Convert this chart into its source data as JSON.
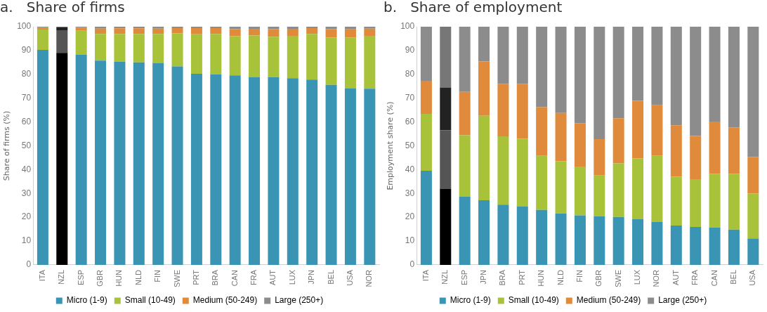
{
  "chart_data": [
    {
      "type": "bar",
      "title": "a.   Share of firms",
      "ylabel": "Share of firms (%)",
      "stacked": true,
      "grid": false,
      "legend": "bottom",
      "ylim": [
        0,
        100
      ],
      "yticks": [
        0,
        10,
        20,
        30,
        40,
        50,
        60,
        70,
        80,
        90,
        100
      ],
      "categories": [
        "ITA",
        "NZL",
        "ESP",
        "GBR",
        "HUN",
        "NLD",
        "FIN",
        "SWE",
        "PRT",
        "BRA",
        "CAN",
        "FRA",
        "AUT",
        "LUX",
        "JPN",
        "BEL",
        "USA",
        "NOR"
      ],
      "series": [
        {
          "name": "Micro (1-9)",
          "color": "#3a95b5",
          "colors": [
            "#3a95b5",
            "#000000",
            "#3a95b5",
            "#3a95b5",
            "#3a95b5",
            "#3a95b5",
            "#3a95b5",
            "#3a95b5",
            "#3a95b5",
            "#3a95b5",
            "#3a95b5",
            "#3a95b5",
            "#3a95b5",
            "#3a95b5",
            "#3a95b5",
            "#3a95b5",
            "#3a95b5",
            "#3a95b5"
          ],
          "values": [
            90.3,
            89,
            88.3,
            85.8,
            85.3,
            85.0,
            84.8,
            83.3,
            80.2,
            80.0,
            79.6,
            78.9,
            78.8,
            78.4,
            77.8,
            75.6,
            74.2,
            74.0
          ]
        },
        {
          "name": "Small (10-49)",
          "color": "#a8c23a",
          "colors": [
            "#a8c23a",
            "#555555",
            "#a8c23a",
            "#a8c23a",
            "#a8c23a",
            "#a8c23a",
            "#a8c23a",
            "#a8c23a",
            "#a8c23a",
            "#a8c23a",
            "#a8c23a",
            "#a8c23a",
            "#a8c23a",
            "#a8c23a",
            "#a8c23a",
            "#a8c23a",
            "#a8c23a",
            "#a8c23a"
          ],
          "values": [
            8.5,
            9.5,
            10.0,
            11.2,
            11.7,
            12.0,
            12.2,
            13.9,
            16.6,
            17.0,
            16.4,
            17.4,
            17.0,
            17.8,
            19.2,
            19.9,
            21.3,
            22.2
          ]
        },
        {
          "name": "Medium (50-249)",
          "color": "#e08a3c",
          "colors": [
            "#e08a3c",
            "#222222",
            "#e08a3c",
            "#e08a3c",
            "#e08a3c",
            "#e08a3c",
            "#e08a3c",
            "#e08a3c",
            "#e08a3c",
            "#e08a3c",
            "#e08a3c",
            "#e08a3c",
            "#e08a3c",
            "#e08a3c",
            "#e08a3c",
            "#e08a3c",
            "#e08a3c",
            "#e08a3c"
          ],
          "values": [
            0.8,
            1.2,
            1.3,
            2.2,
            2.3,
            2.3,
            2.2,
            2.2,
            2.6,
            2.4,
            3.0,
            2.8,
            3.2,
            2.9,
            2.4,
            3.5,
            3.4,
            3.0
          ]
        },
        {
          "name": "Large (250+)",
          "color": "#8c8c8c",
          "colors": [
            "#8c8c8c",
            "#777777",
            "#8c8c8c",
            "#8c8c8c",
            "#8c8c8c",
            "#8c8c8c",
            "#8c8c8c",
            "#8c8c8c",
            "#8c8c8c",
            "#8c8c8c",
            "#8c8c8c",
            "#8c8c8c",
            "#8c8c8c",
            "#8c8c8c",
            "#8c8c8c",
            "#8c8c8c",
            "#8c8c8c",
            "#8c8c8c"
          ],
          "values": [
            0.4,
            0.3,
            0.4,
            0.8,
            0.7,
            0.7,
            0.8,
            0.6,
            0.6,
            0.6,
            1.0,
            0.9,
            1.0,
            0.9,
            0.6,
            1.0,
            1.1,
            0.8
          ]
        }
      ]
    },
    {
      "type": "bar",
      "title": "b.   Share of employment",
      "ylabel": "Employment share (%)",
      "stacked": true,
      "grid": false,
      "legend": "bottom",
      "ylim": [
        0,
        100
      ],
      "yticks": [
        0,
        10,
        20,
        30,
        40,
        50,
        60,
        70,
        80,
        90,
        100
      ],
      "categories": [
        "ITA",
        "NZL",
        "ESP",
        "JPN",
        "BRA",
        "PRT",
        "HUN",
        "NLD",
        "FIN",
        "GBR",
        "SWE",
        "LUX",
        "NOR",
        "AUT",
        "FRA",
        "CAN",
        "BEL",
        "USA"
      ],
      "series": [
        {
          "name": "Micro (1-9)",
          "color": "#3a95b5",
          "colors": [
            "#3a95b5",
            "#000000",
            "#3a95b5",
            "#3a95b5",
            "#3a95b5",
            "#3a95b5",
            "#3a95b5",
            "#3a95b5",
            "#3a95b5",
            "#3a95b5",
            "#3a95b5",
            "#3a95b5",
            "#3a95b5",
            "#3a95b5",
            "#3a95b5",
            "#3a95b5",
            "#3a95b5",
            "#3a95b5"
          ],
          "values": [
            39.5,
            32.0,
            28.6,
            27.1,
            25.3,
            24.6,
            23.1,
            21.6,
            20.8,
            20.4,
            20.1,
            19.3,
            18.1,
            16.5,
            15.9,
            15.6,
            14.8,
            11.1
          ]
        },
        {
          "name": "Small (10-49)",
          "color": "#a8c23a",
          "colors": [
            "#a8c23a",
            "#555555",
            "#a8c23a",
            "#a8c23a",
            "#a8c23a",
            "#a8c23a",
            "#a8c23a",
            "#a8c23a",
            "#a8c23a",
            "#a8c23a",
            "#a8c23a",
            "#a8c23a",
            "#a8c23a",
            "#a8c23a",
            "#a8c23a",
            "#a8c23a",
            "#a8c23a",
            "#a8c23a"
          ],
          "values": [
            23.9,
            24.5,
            25.8,
            35.5,
            28.7,
            28.4,
            22.7,
            22.0,
            20.5,
            17.1,
            22.5,
            25.4,
            27.7,
            20.5,
            20.1,
            22.6,
            23.4,
            18.8
          ]
        },
        {
          "name": "Medium (50-249)",
          "color": "#e08a3c",
          "colors": [
            "#e08a3c",
            "#222222",
            "#e08a3c",
            "#e08a3c",
            "#e08a3c",
            "#e08a3c",
            "#e08a3c",
            "#e08a3c",
            "#e08a3c",
            "#e08a3c",
            "#e08a3c",
            "#e08a3c",
            "#e08a3c",
            "#e08a3c",
            "#e08a3c",
            "#e08a3c",
            "#e08a3c",
            "#e08a3c"
          ],
          "values": [
            13.9,
            18.0,
            18.2,
            22.8,
            22.0,
            23.0,
            20.4,
            20.2,
            18.2,
            15.3,
            19.0,
            24.2,
            21.2,
            21.6,
            18.1,
            22.0,
            19.5,
            15.4
          ]
        },
        {
          "name": "Large (250+)",
          "color": "#8c8c8c",
          "colors": [
            "#8c8c8c",
            "#777777",
            "#8c8c8c",
            "#8c8c8c",
            "#8c8c8c",
            "#8c8c8c",
            "#8c8c8c",
            "#8c8c8c",
            "#8c8c8c",
            "#8c8c8c",
            "#8c8c8c",
            "#8c8c8c",
            "#8c8c8c",
            "#8c8c8c",
            "#8c8c8c",
            "#8c8c8c",
            "#8c8c8c",
            "#8c8c8c"
          ],
          "values": [
            22.7,
            25.5,
            27.4,
            14.6,
            24.0,
            24.0,
            33.8,
            36.2,
            40.5,
            47.2,
            38.4,
            31.1,
            33.0,
            41.4,
            45.9,
            39.8,
            42.3,
            54.7
          ]
        }
      ]
    }
  ]
}
